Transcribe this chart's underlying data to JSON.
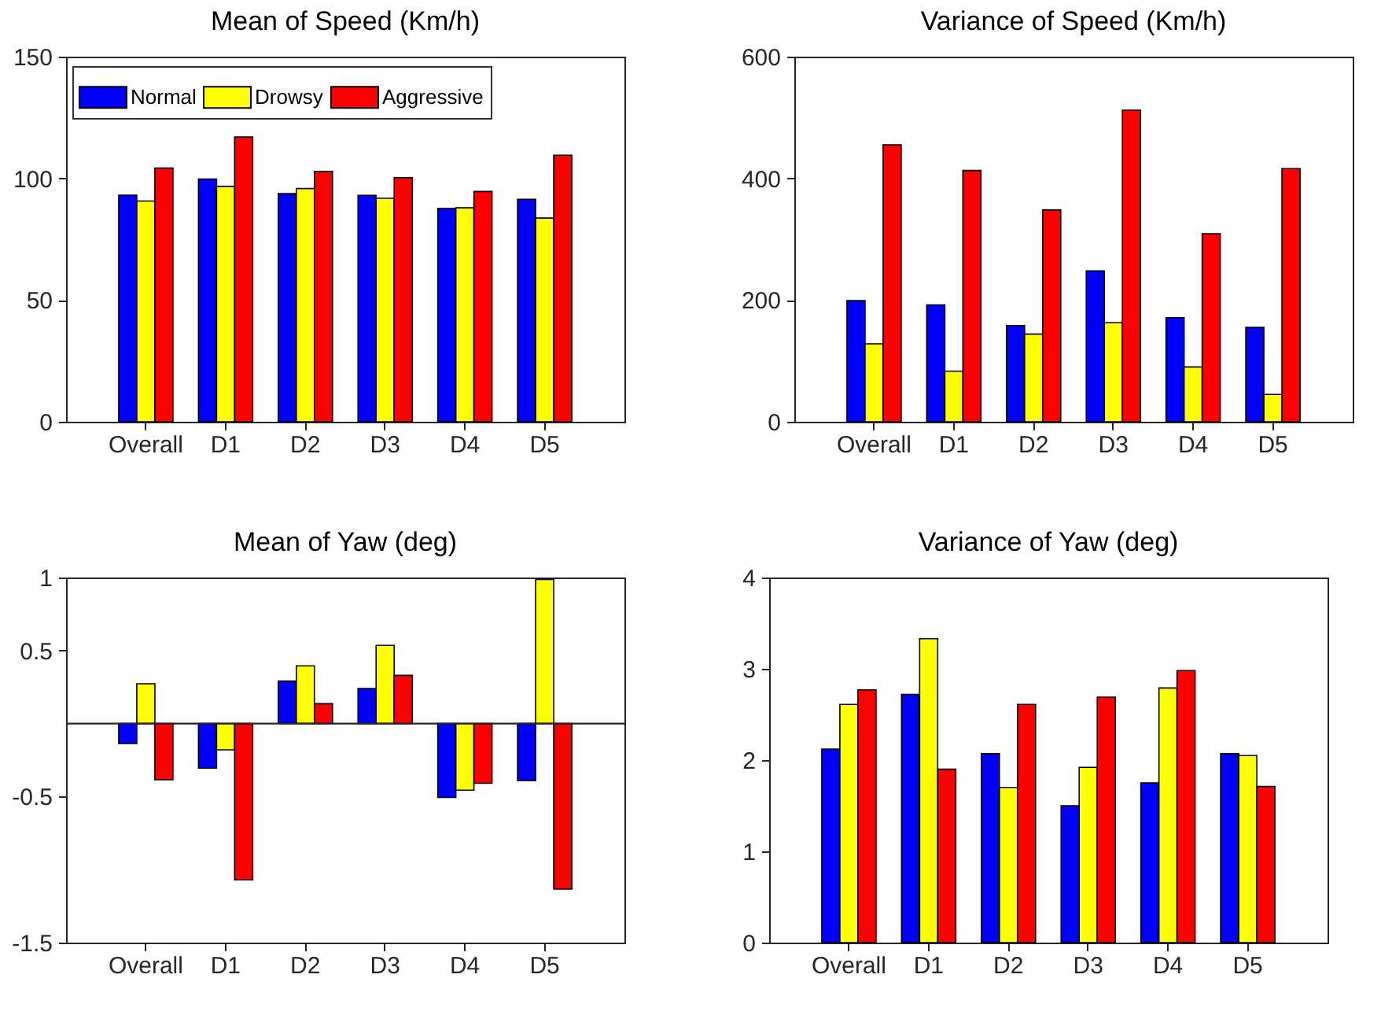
{
  "chart_data": [
    {
      "type": "bar",
      "title": "Mean of Speed (Km/h)",
      "categories": [
        "Overall",
        "D1",
        "D2",
        "D3",
        "D4",
        "D5"
      ],
      "ylim": [
        0,
        150
      ],
      "yticks": [
        0,
        50,
        100,
        150
      ],
      "grid": false,
      "legend": "top",
      "series": [
        {
          "name": "Normal",
          "color": "#0000ff",
          "values": [
            93.1,
            99.7,
            93.7,
            93.0,
            87.7,
            91.4
          ]
        },
        {
          "name": "Drowsy",
          "color": "#ffff00",
          "values": [
            90.7,
            96.7,
            95.8,
            91.8,
            87.9,
            83.7
          ]
        },
        {
          "name": "Aggressive",
          "color": "#ff0000",
          "values": [
            104.2,
            117.0,
            102.9,
            100.3,
            94.6,
            109.5
          ]
        }
      ]
    },
    {
      "type": "bar",
      "title": "Variance of Speed (Km/h)",
      "categories": [
        "Overall",
        "D1",
        "D2",
        "D3",
        "D4",
        "D5"
      ],
      "ylim": [
        0,
        600
      ],
      "yticks": [
        0,
        200,
        400,
        600
      ],
      "grid": false,
      "series": [
        {
          "color": "#0000ff",
          "values": [
            199,
            192,
            158,
            248,
            171,
            155
          ]
        },
        {
          "color": "#ffff00",
          "values": [
            128,
            83,
            144,
            163,
            90,
            45
          ]
        },
        {
          "color": "#ff0000",
          "values": [
            455,
            413,
            348,
            512,
            309,
            416
          ]
        }
      ]
    },
    {
      "type": "bar",
      "title": "Mean of Yaw (deg)",
      "categories": [
        "Overall",
        "D1",
        "D2",
        "D3",
        "D4",
        "D5"
      ],
      "ylim": [
        -1.5,
        1
      ],
      "yticks": [
        -1.5,
        -0.5,
        0.5,
        1
      ],
      "grid": false,
      "ref_lines": [
        {
          "axis": "y",
          "value": 0,
          "color": "#262626"
        }
      ],
      "series": [
        {
          "color": "#0000ff",
          "values": [
            -0.136,
            -0.305,
            0.291,
            0.24,
            -0.506,
            -0.391
          ]
        },
        {
          "color": "#ffff00",
          "values": [
            0.273,
            -0.18,
            0.395,
            0.535,
            -0.456,
            0.987
          ]
        },
        {
          "color": "#ff0000",
          "values": [
            -0.384,
            -1.07,
            0.136,
            0.33,
            -0.409,
            -1.134
          ]
        }
      ]
    },
    {
      "type": "bar",
      "title": "Variance of Yaw (deg)",
      "categories": [
        "Overall",
        "D1",
        "D2",
        "D3",
        "D4",
        "D5"
      ],
      "ylim": [
        0,
        4
      ],
      "yticks": [
        0,
        1,
        2,
        3,
        4
      ],
      "grid": false,
      "series": [
        {
          "color": "#0000ff",
          "values": [
            2.12,
            2.72,
            2.07,
            1.5,
            1.75,
            2.07
          ]
        },
        {
          "color": "#ffff00",
          "values": [
            2.61,
            3.33,
            1.7,
            1.92,
            2.79,
            2.05
          ]
        },
        {
          "color": "#ff0000",
          "values": [
            2.77,
            1.9,
            2.61,
            2.69,
            2.98,
            1.71
          ]
        }
      ]
    }
  ]
}
